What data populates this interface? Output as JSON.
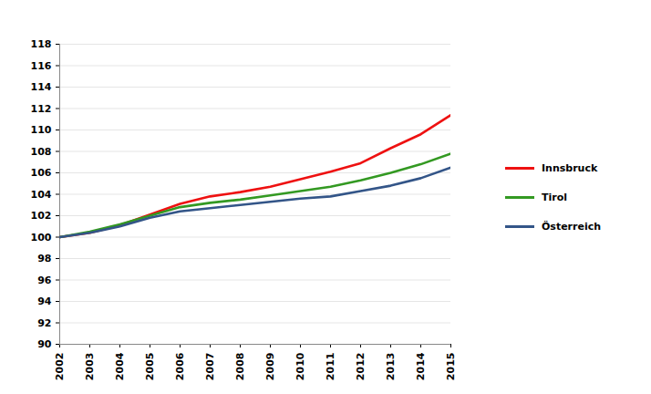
{
  "chart_data": {
    "type": "line",
    "x": [
      2002,
      2003,
      2004,
      2005,
      2006,
      2007,
      2008,
      2009,
      2010,
      2011,
      2012,
      2013,
      2014,
      2015
    ],
    "series": [
      {
        "name": "Innsbruck",
        "color": "#ee1111",
        "values": [
          100,
          100.4,
          101.1,
          102.1,
          103.1,
          103.8,
          104.2,
          104.7,
          105.4,
          106.1,
          106.9,
          108.3,
          109.6,
          111.4
        ]
      },
      {
        "name": "Tirol",
        "color": "#339922",
        "values": [
          100,
          100.5,
          101.2,
          102.0,
          102.8,
          103.2,
          103.5,
          103.9,
          104.3,
          104.7,
          105.3,
          106.0,
          106.8,
          107.8
        ]
      },
      {
        "name": "Österreich",
        "color": "#335588",
        "values": [
          100,
          100.4,
          101.0,
          101.8,
          102.4,
          102.7,
          103.0,
          103.3,
          103.6,
          103.8,
          104.3,
          104.8,
          105.5,
          106.5
        ]
      }
    ],
    "xlim": [
      2002,
      2015
    ],
    "xticks": [
      2002,
      2003,
      2004,
      2005,
      2006,
      2007,
      2008,
      2009,
      2010,
      2011,
      2012,
      2013,
      2014,
      2015
    ],
    "ylim": [
      90,
      118
    ],
    "yticks": [
      90,
      92,
      94,
      96,
      98,
      100,
      102,
      104,
      106,
      108,
      110,
      112,
      114,
      116,
      118
    ],
    "grid": true,
    "legend": "right"
  }
}
